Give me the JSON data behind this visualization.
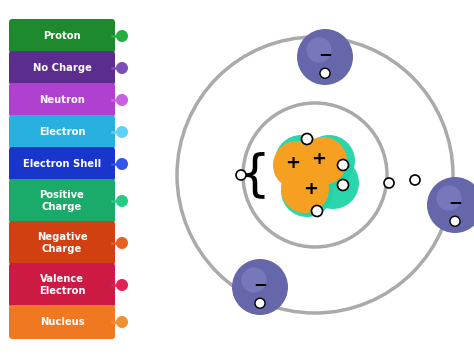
{
  "legend_items": [
    {
      "label": "Proton",
      "color": "#1e8a2e",
      "dot_color": "#22b040"
    },
    {
      "label": "No Charge",
      "color": "#5b2d8e",
      "dot_color": "#7b4db8"
    },
    {
      "label": "Neutron",
      "color": "#b040d0",
      "dot_color": "#c860e0"
    },
    {
      "label": "Electron",
      "color": "#28b0e0",
      "dot_color": "#60d0f8"
    },
    {
      "label": "Electron Shell",
      "color": "#1a35cc",
      "dot_color": "#3355ee"
    },
    {
      "label": "Positive\nCharge",
      "color": "#1aaa6a",
      "dot_color": "#22cc80"
    },
    {
      "label": "Negative\nCharge",
      "color": "#d04010",
      "dot_color": "#e86020"
    },
    {
      "label": "Valence\nElectron",
      "color": "#cc1a44",
      "dot_color": "#e02255"
    },
    {
      "label": "Nucleus",
      "color": "#f07820",
      "dot_color": "#f09030"
    }
  ],
  "bg_color": "#ffffff",
  "shell_color": "#aaaaaa",
  "nucleus_orange": "#f5a020",
  "nucleus_teal": "#20d4a8",
  "electron_color": "#6666aa",
  "electron_highlight": "#8888cc"
}
